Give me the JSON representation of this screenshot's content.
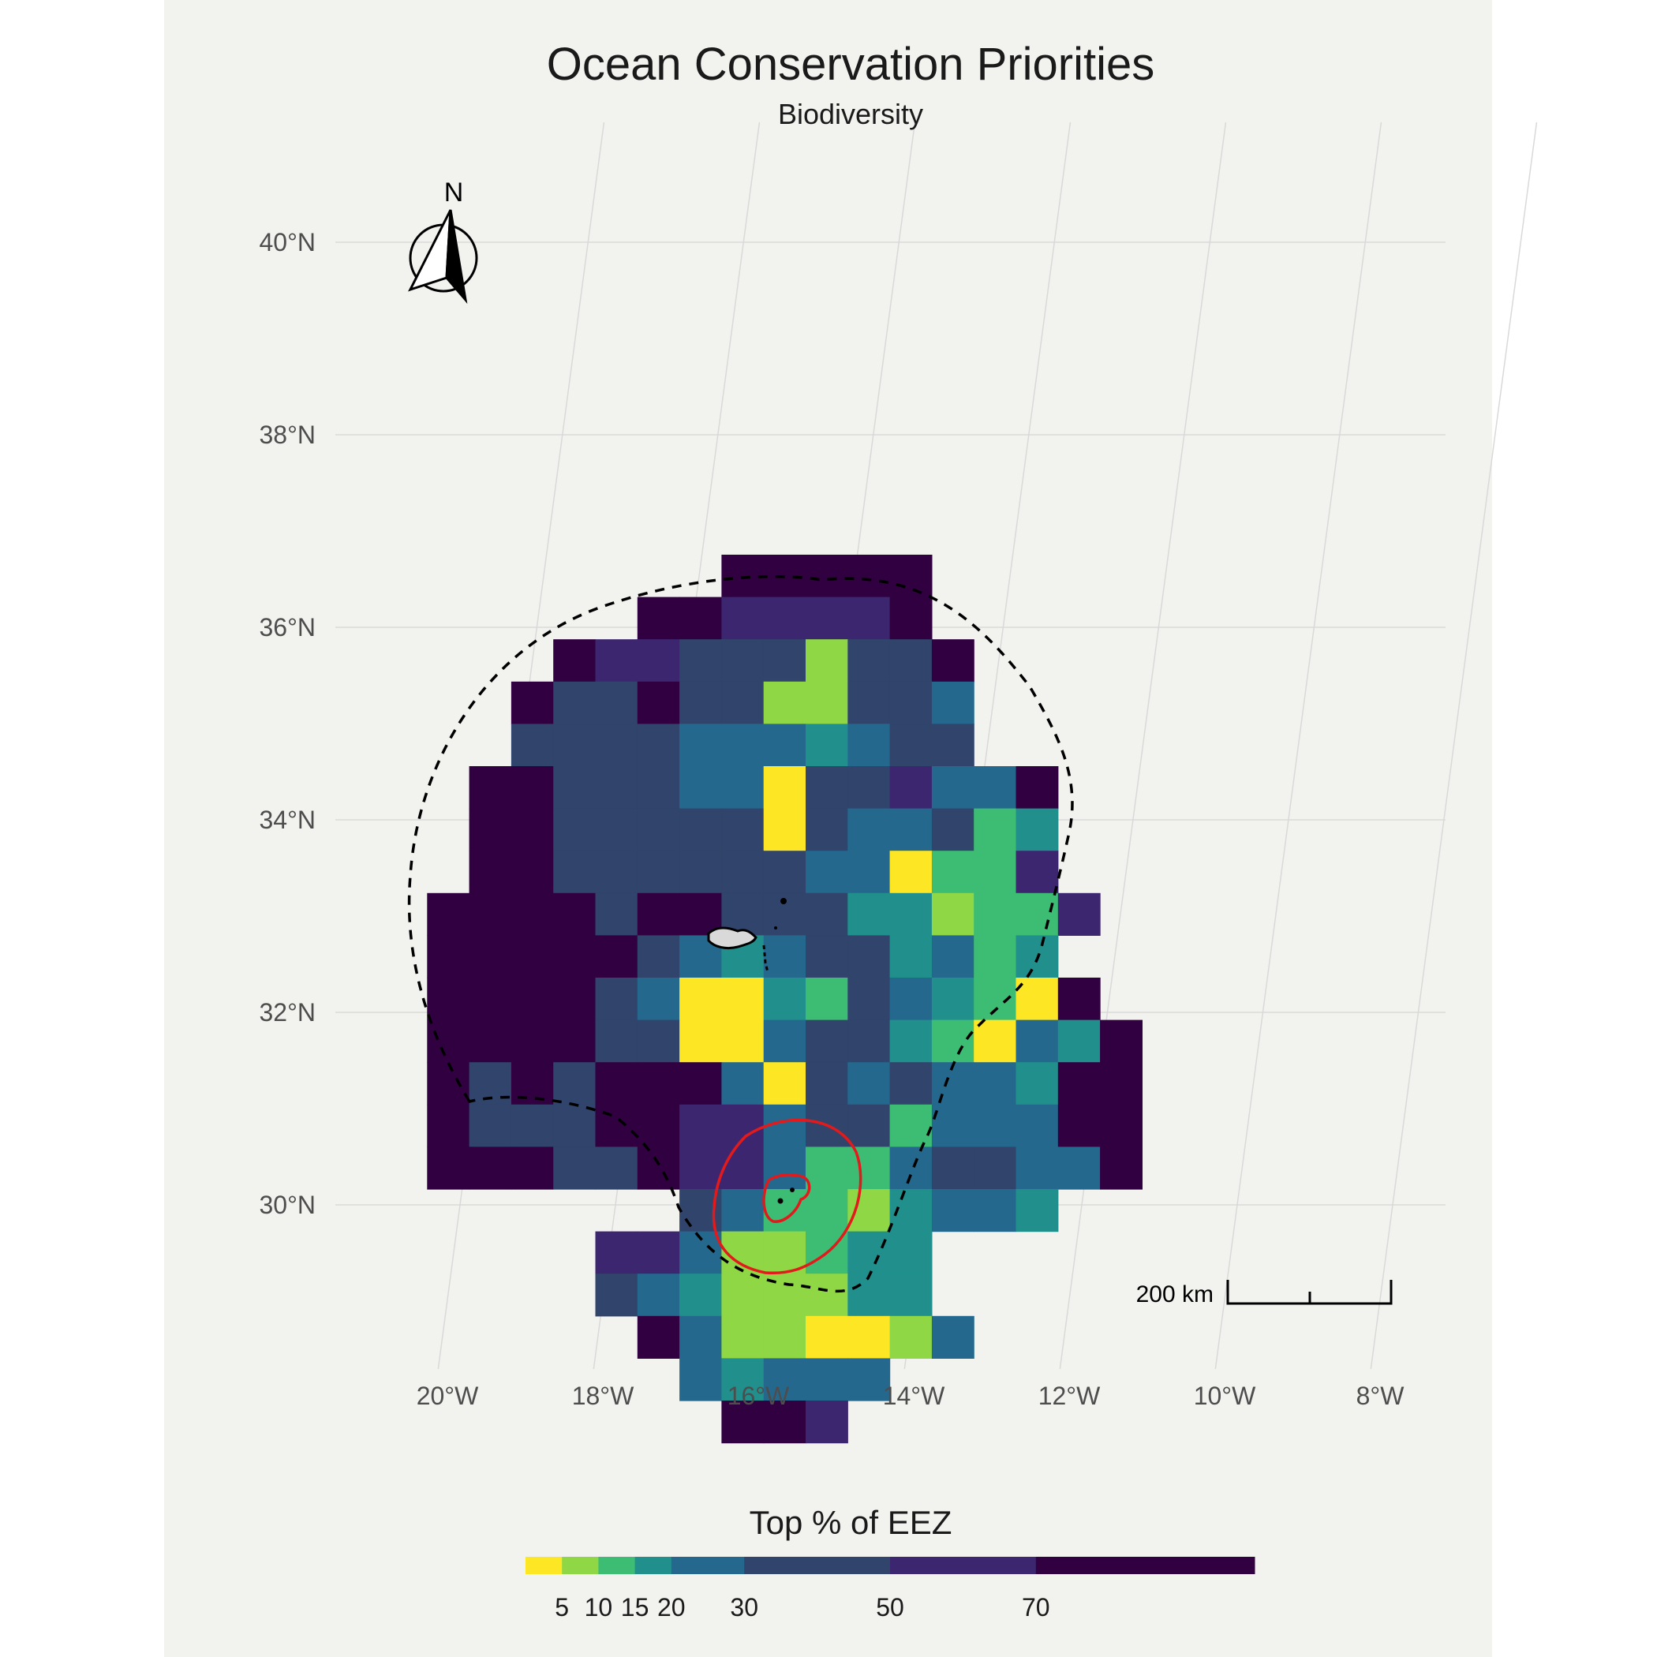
{
  "title": "Ocean Conservation Priorities",
  "subtitle": "Biodiversity",
  "legend": {
    "title": "Top % of EEZ",
    "tick_labels": [
      "5",
      "10",
      "15",
      "20",
      "30",
      "50",
      "70"
    ],
    "breaks": [
      0,
      5,
      10,
      15,
      20,
      30,
      50,
      70,
      100
    ],
    "colors": [
      "#fde725",
      "#8fd744",
      "#3dbc74",
      "#21908d",
      "#25688e",
      "#31446b",
      "#3d2670",
      "#300040"
    ]
  },
  "north_arrow": {
    "label": "N"
  },
  "scale_bar": {
    "label": "200 km"
  },
  "axes": {
    "lat_labels": [
      "30°N",
      "32°N",
      "34°N",
      "36°N",
      "38°N",
      "40°N"
    ],
    "lon_labels": [
      "20°W",
      "18°W",
      "16°W",
      "14°W",
      "12°W",
      "10°W",
      "8°W"
    ]
  },
  "colors": {
    "panel_background": "#f2f2ef",
    "grid": "#d9d9d9",
    "land": "#d9d9d9",
    "mpa_outline": "#e31a1c",
    "eez_outline": "#000000"
  },
  "raster": {
    "cell_size_deg": 0.5,
    "col0_lon": -21.0,
    "row0_lat": 36.5,
    "class_codes": "0=5,1=10,2=15,3=20,4=30,5=50,6=70,7=100",
    "rows": [
      "........77777....",
      "......7766667....",
      "....7665551557...",
      "...75575511554...",
      "...55554443455...",
      "..77555440556447.",
      "..77555550544523.",
      "..77555555440226.",
      ".7777577555331226.",
      ".777775434553423.",
      ".7777540032543207",
      ".77775500455320437",
      ".75757774054544377",
      ".75557766455244477",
      ".77755766422455447",
      ".......542213443",
      ".....66411233",
      ".....54311133",
      "......74110014",
      ".......43444",
      "........776"
    ]
  }
}
